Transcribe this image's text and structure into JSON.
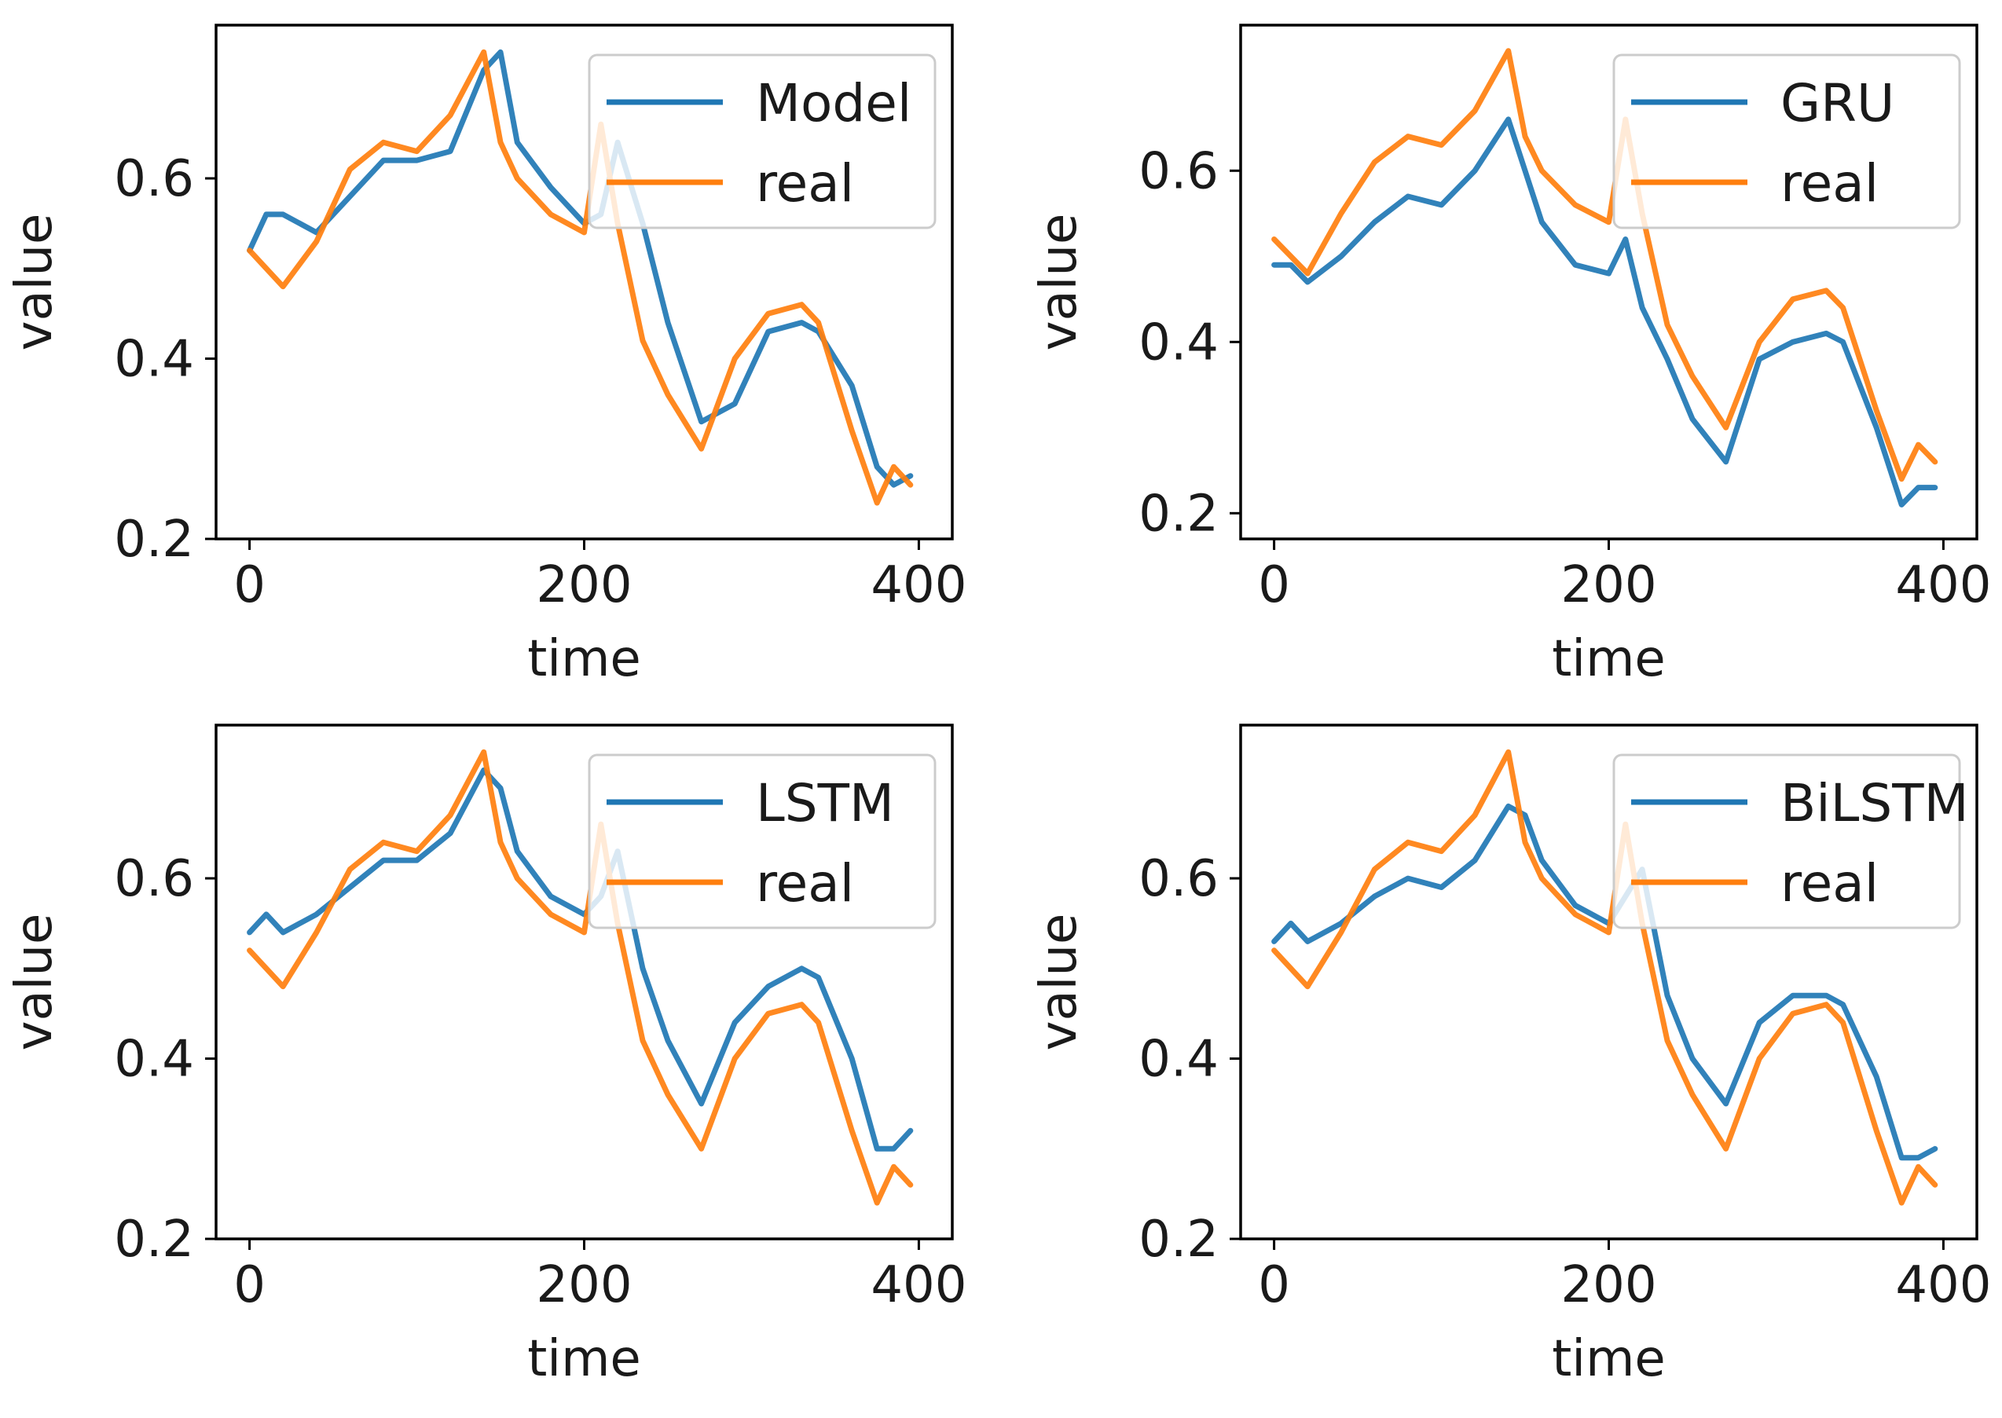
{
  "figure": {
    "colors": {
      "model": "#1f77b4",
      "real": "#ff7f0e",
      "axes": "#000000",
      "legend_border": "#cccccc"
    }
  },
  "chart_data": [
    {
      "type": "line",
      "title": "",
      "xlabel": "time",
      "ylabel": "value",
      "xlim": [
        -20,
        420
      ],
      "ylim": [
        0.2,
        0.77
      ],
      "xticks": [
        "0",
        "200",
        "400"
      ],
      "yticks": [
        "0.2",
        "0.4",
        "0.6"
      ],
      "legend": "top-right",
      "series": [
        {
          "name": "Model",
          "color": "#1f77b4",
          "x": [
            0,
            10,
            20,
            40,
            60,
            80,
            100,
            120,
            140,
            150,
            160,
            180,
            200,
            210,
            220,
            235,
            250,
            270,
            290,
            310,
            330,
            340,
            360,
            375,
            385,
            395
          ],
          "y": [
            0.52,
            0.56,
            0.56,
            0.54,
            0.58,
            0.62,
            0.62,
            0.63,
            0.72,
            0.74,
            0.64,
            0.59,
            0.55,
            0.56,
            0.64,
            0.55,
            0.44,
            0.33,
            0.35,
            0.43,
            0.44,
            0.43,
            0.37,
            0.28,
            0.26,
            0.27
          ]
        },
        {
          "name": "real",
          "color": "#ff7f0e",
          "x": [
            0,
            10,
            20,
            40,
            60,
            80,
            100,
            120,
            140,
            150,
            160,
            180,
            200,
            210,
            220,
            235,
            250,
            270,
            290,
            310,
            330,
            340,
            360,
            375,
            385,
            395
          ],
          "y": [
            0.52,
            0.5,
            0.48,
            0.53,
            0.61,
            0.64,
            0.63,
            0.67,
            0.74,
            0.64,
            0.6,
            0.56,
            0.54,
            0.66,
            0.55,
            0.42,
            0.36,
            0.3,
            0.4,
            0.45,
            0.46,
            0.44,
            0.32,
            0.24,
            0.28,
            0.26
          ]
        }
      ]
    },
    {
      "type": "line",
      "title": "",
      "xlabel": "time",
      "ylabel": "value",
      "xlim": [
        -20,
        420
      ],
      "ylim": [
        0.17,
        0.77
      ],
      "xticks": [
        "0",
        "200",
        "400"
      ],
      "yticks": [
        "0.2",
        "0.4",
        "0.6"
      ],
      "legend": "top-right",
      "series": [
        {
          "name": "GRU",
          "color": "#1f77b4",
          "x": [
            0,
            10,
            20,
            40,
            60,
            80,
            100,
            120,
            140,
            150,
            160,
            180,
            200,
            210,
            220,
            235,
            250,
            270,
            290,
            310,
            330,
            340,
            360,
            375,
            385,
            395
          ],
          "y": [
            0.49,
            0.49,
            0.47,
            0.5,
            0.54,
            0.57,
            0.56,
            0.6,
            0.66,
            0.6,
            0.54,
            0.49,
            0.48,
            0.52,
            0.44,
            0.38,
            0.31,
            0.26,
            0.38,
            0.4,
            0.41,
            0.4,
            0.3,
            0.21,
            0.23,
            0.23
          ]
        },
        {
          "name": "real",
          "color": "#ff7f0e",
          "x": [
            0,
            10,
            20,
            40,
            60,
            80,
            100,
            120,
            140,
            150,
            160,
            180,
            200,
            210,
            220,
            235,
            250,
            270,
            290,
            310,
            330,
            340,
            360,
            375,
            385,
            395
          ],
          "y": [
            0.52,
            0.5,
            0.48,
            0.55,
            0.61,
            0.64,
            0.63,
            0.67,
            0.74,
            0.64,
            0.6,
            0.56,
            0.54,
            0.66,
            0.55,
            0.42,
            0.36,
            0.3,
            0.4,
            0.45,
            0.46,
            0.44,
            0.32,
            0.24,
            0.28,
            0.26
          ]
        }
      ]
    },
    {
      "type": "line",
      "title": "",
      "xlabel": "time",
      "ylabel": "value",
      "xlim": [
        -20,
        420
      ],
      "ylim": [
        0.2,
        0.77
      ],
      "xticks": [
        "0",
        "200",
        "400"
      ],
      "yticks": [
        "0.2",
        "0.4",
        "0.6"
      ],
      "legend": "top-right",
      "series": [
        {
          "name": "LSTM",
          "color": "#1f77b4",
          "x": [
            0,
            10,
            20,
            40,
            60,
            80,
            100,
            120,
            140,
            150,
            160,
            180,
            200,
            210,
            220,
            235,
            250,
            270,
            290,
            310,
            330,
            340,
            360,
            375,
            385,
            395
          ],
          "y": [
            0.54,
            0.56,
            0.54,
            0.56,
            0.59,
            0.62,
            0.62,
            0.65,
            0.72,
            0.7,
            0.63,
            0.58,
            0.56,
            0.58,
            0.63,
            0.5,
            0.42,
            0.35,
            0.44,
            0.48,
            0.5,
            0.49,
            0.4,
            0.3,
            0.3,
            0.32
          ]
        },
        {
          "name": "real",
          "color": "#ff7f0e",
          "x": [
            0,
            10,
            20,
            40,
            60,
            80,
            100,
            120,
            140,
            150,
            160,
            180,
            200,
            210,
            220,
            235,
            250,
            270,
            290,
            310,
            330,
            340,
            360,
            375,
            385,
            395
          ],
          "y": [
            0.52,
            0.5,
            0.48,
            0.54,
            0.61,
            0.64,
            0.63,
            0.67,
            0.74,
            0.64,
            0.6,
            0.56,
            0.54,
            0.66,
            0.55,
            0.42,
            0.36,
            0.3,
            0.4,
            0.45,
            0.46,
            0.44,
            0.32,
            0.24,
            0.28,
            0.26
          ]
        }
      ]
    },
    {
      "type": "line",
      "title": "",
      "xlabel": "time",
      "ylabel": "value",
      "xlim": [
        -20,
        420
      ],
      "ylim": [
        0.2,
        0.77
      ],
      "xticks": [
        "0",
        "200",
        "400"
      ],
      "yticks": [
        "0.2",
        "0.4",
        "0.6"
      ],
      "legend": "top-right",
      "series": [
        {
          "name": "BiLSTM",
          "color": "#1f77b4",
          "x": [
            0,
            10,
            20,
            40,
            60,
            80,
            100,
            120,
            140,
            150,
            160,
            180,
            200,
            210,
            220,
            235,
            250,
            270,
            290,
            310,
            330,
            340,
            360,
            375,
            385,
            395
          ],
          "y": [
            0.53,
            0.55,
            0.53,
            0.55,
            0.58,
            0.6,
            0.59,
            0.62,
            0.68,
            0.67,
            0.62,
            0.57,
            0.55,
            0.58,
            0.61,
            0.47,
            0.4,
            0.35,
            0.44,
            0.47,
            0.47,
            0.46,
            0.38,
            0.29,
            0.29,
            0.3
          ]
        },
        {
          "name": "real",
          "color": "#ff7f0e",
          "x": [
            0,
            10,
            20,
            40,
            60,
            80,
            100,
            120,
            140,
            150,
            160,
            180,
            200,
            210,
            220,
            235,
            250,
            270,
            290,
            310,
            330,
            340,
            360,
            375,
            385,
            395
          ],
          "y": [
            0.52,
            0.5,
            0.48,
            0.54,
            0.61,
            0.64,
            0.63,
            0.67,
            0.74,
            0.64,
            0.6,
            0.56,
            0.54,
            0.66,
            0.55,
            0.42,
            0.36,
            0.3,
            0.4,
            0.45,
            0.46,
            0.44,
            0.32,
            0.24,
            0.28,
            0.26
          ]
        }
      ]
    }
  ]
}
